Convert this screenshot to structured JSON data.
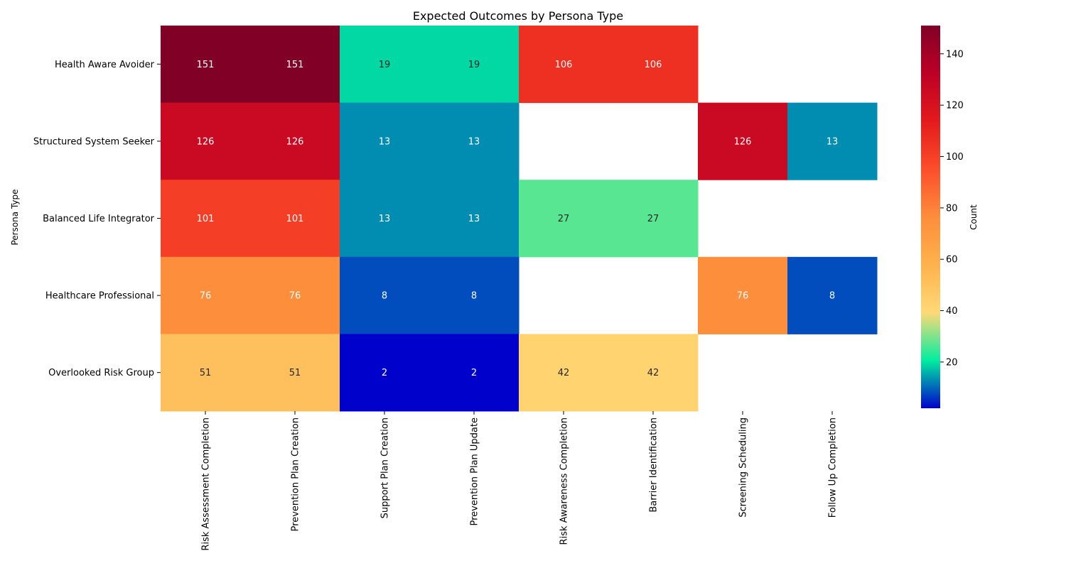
{
  "chart_data": {
    "type": "heatmap",
    "title": "Expected Outcomes by Persona Type",
    "ylabel": "Persona Type",
    "xlabel": "",
    "colorbar_label": "Count",
    "colormap": "YlOrRd",
    "vmin": 2,
    "vmax": 151,
    "colorbar_ticks": [
      20,
      40,
      60,
      80,
      100,
      120,
      140
    ],
    "rows": [
      "Health Aware Avoider",
      "Structured System Seeker",
      "Balanced Life Integrator",
      "Healthcare Professional",
      "Overlooked Risk Group"
    ],
    "columns": [
      "Risk Assessment Completion",
      "Prevention Plan Creation",
      "Support Plan Creation",
      "Prevention Plan Update",
      "Risk Awareness Completion",
      "Barrier Identification",
      "Screening Scheduling",
      "Follow Up Completion"
    ],
    "values": [
      [
        151,
        151,
        19,
        19,
        106,
        106,
        null,
        null
      ],
      [
        126,
        126,
        13,
        13,
        null,
        null,
        126,
        13
      ],
      [
        101,
        101,
        13,
        13,
        27,
        27,
        null,
        null
      ],
      [
        76,
        76,
        8,
        8,
        null,
        null,
        76,
        8
      ],
      [
        51,
        51,
        2,
        2,
        42,
        42,
        null,
        null
      ]
    ]
  }
}
